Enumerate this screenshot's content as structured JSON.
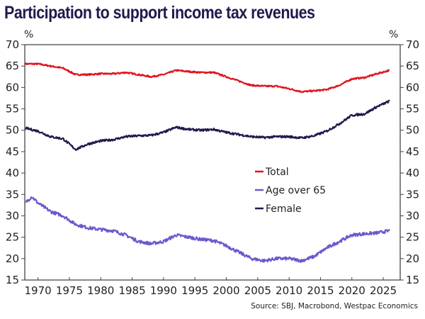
{
  "chart_data": {
    "type": "line",
    "title": "Participation to support income tax revenues",
    "ylabel_left": "%",
    "ylabel_right": "%",
    "xlabel": "",
    "ylim": [
      15,
      70
    ],
    "xlim": [
      1967.9,
      2027.7
    ],
    "yticks": [
      15,
      20,
      25,
      30,
      35,
      40,
      45,
      50,
      55,
      60,
      65,
      70
    ],
    "xticks": [
      1970,
      1975,
      1980,
      1985,
      1990,
      1995,
      2000,
      2005,
      2010,
      2015,
      2020,
      2025
    ],
    "grid": false,
    "legend_position": "center-right",
    "source": "Source: SBJ, Macrobond, Westpac Economics",
    "series": [
      {
        "name": "Total",
        "color": "#e0141e",
        "x": [
          1968,
          1970,
          1972,
          1974,
          1976,
          1978,
          1980,
          1982,
          1984,
          1986,
          1988,
          1990,
          1992,
          1994,
          1996,
          1998,
          2000,
          2002,
          2004,
          2006,
          2008,
          2010,
          2012,
          2014,
          2016,
          2018,
          2020,
          2022,
          2024,
          2026
        ],
        "values": [
          65.5,
          65.5,
          65.0,
          64.5,
          63.0,
          63.0,
          63.2,
          63.2,
          63.5,
          63.0,
          62.5,
          63.0,
          64.0,
          63.7,
          63.5,
          63.5,
          62.5,
          61.5,
          60.5,
          60.3,
          60.3,
          59.7,
          59.0,
          59.2,
          59.5,
          60.5,
          62.0,
          62.3,
          63.2,
          64.0
        ]
      },
      {
        "name": "Age over 65",
        "color": "#6a5acd",
        "x": [
          1968,
          1969,
          1970,
          1972,
          1974,
          1975,
          1976,
          1978,
          1980,
          1982,
          1984,
          1986,
          1988,
          1990,
          1992,
          1994,
          1996,
          1998,
          2000,
          2002,
          2004,
          2006,
          2008,
          2010,
          2012,
          2014,
          2016,
          2018,
          2020,
          2022,
          2024,
          2026
        ],
        "values": [
          33.0,
          34.5,
          33.0,
          31.0,
          30.0,
          29.0,
          28.0,
          27.2,
          26.8,
          26.5,
          25.5,
          24.0,
          23.5,
          24.0,
          25.5,
          25.0,
          24.5,
          24.2,
          23.0,
          21.5,
          20.0,
          19.5,
          20.0,
          20.0,
          19.5,
          20.5,
          22.5,
          24.0,
          25.5,
          25.8,
          26.0,
          26.5
        ]
      },
      {
        "name": "Female",
        "color": "#1f1a4d",
        "x": [
          1968,
          1970,
          1972,
          1974,
          1976,
          1978,
          1980,
          1982,
          1984,
          1986,
          1988,
          1990,
          1992,
          1994,
          1996,
          1998,
          2000,
          2002,
          2004,
          2006,
          2008,
          2010,
          2012,
          2014,
          2016,
          2018,
          2020,
          2022,
          2024,
          2026
        ],
        "values": [
          50.5,
          49.8,
          48.5,
          48.0,
          45.5,
          46.8,
          47.5,
          47.8,
          48.5,
          48.7,
          48.8,
          49.5,
          50.7,
          50.2,
          50.0,
          50.2,
          49.5,
          49.0,
          48.5,
          48.3,
          48.5,
          48.5,
          48.2,
          48.7,
          49.8,
          51.5,
          53.5,
          53.8,
          55.5,
          56.8
        ]
      }
    ]
  }
}
